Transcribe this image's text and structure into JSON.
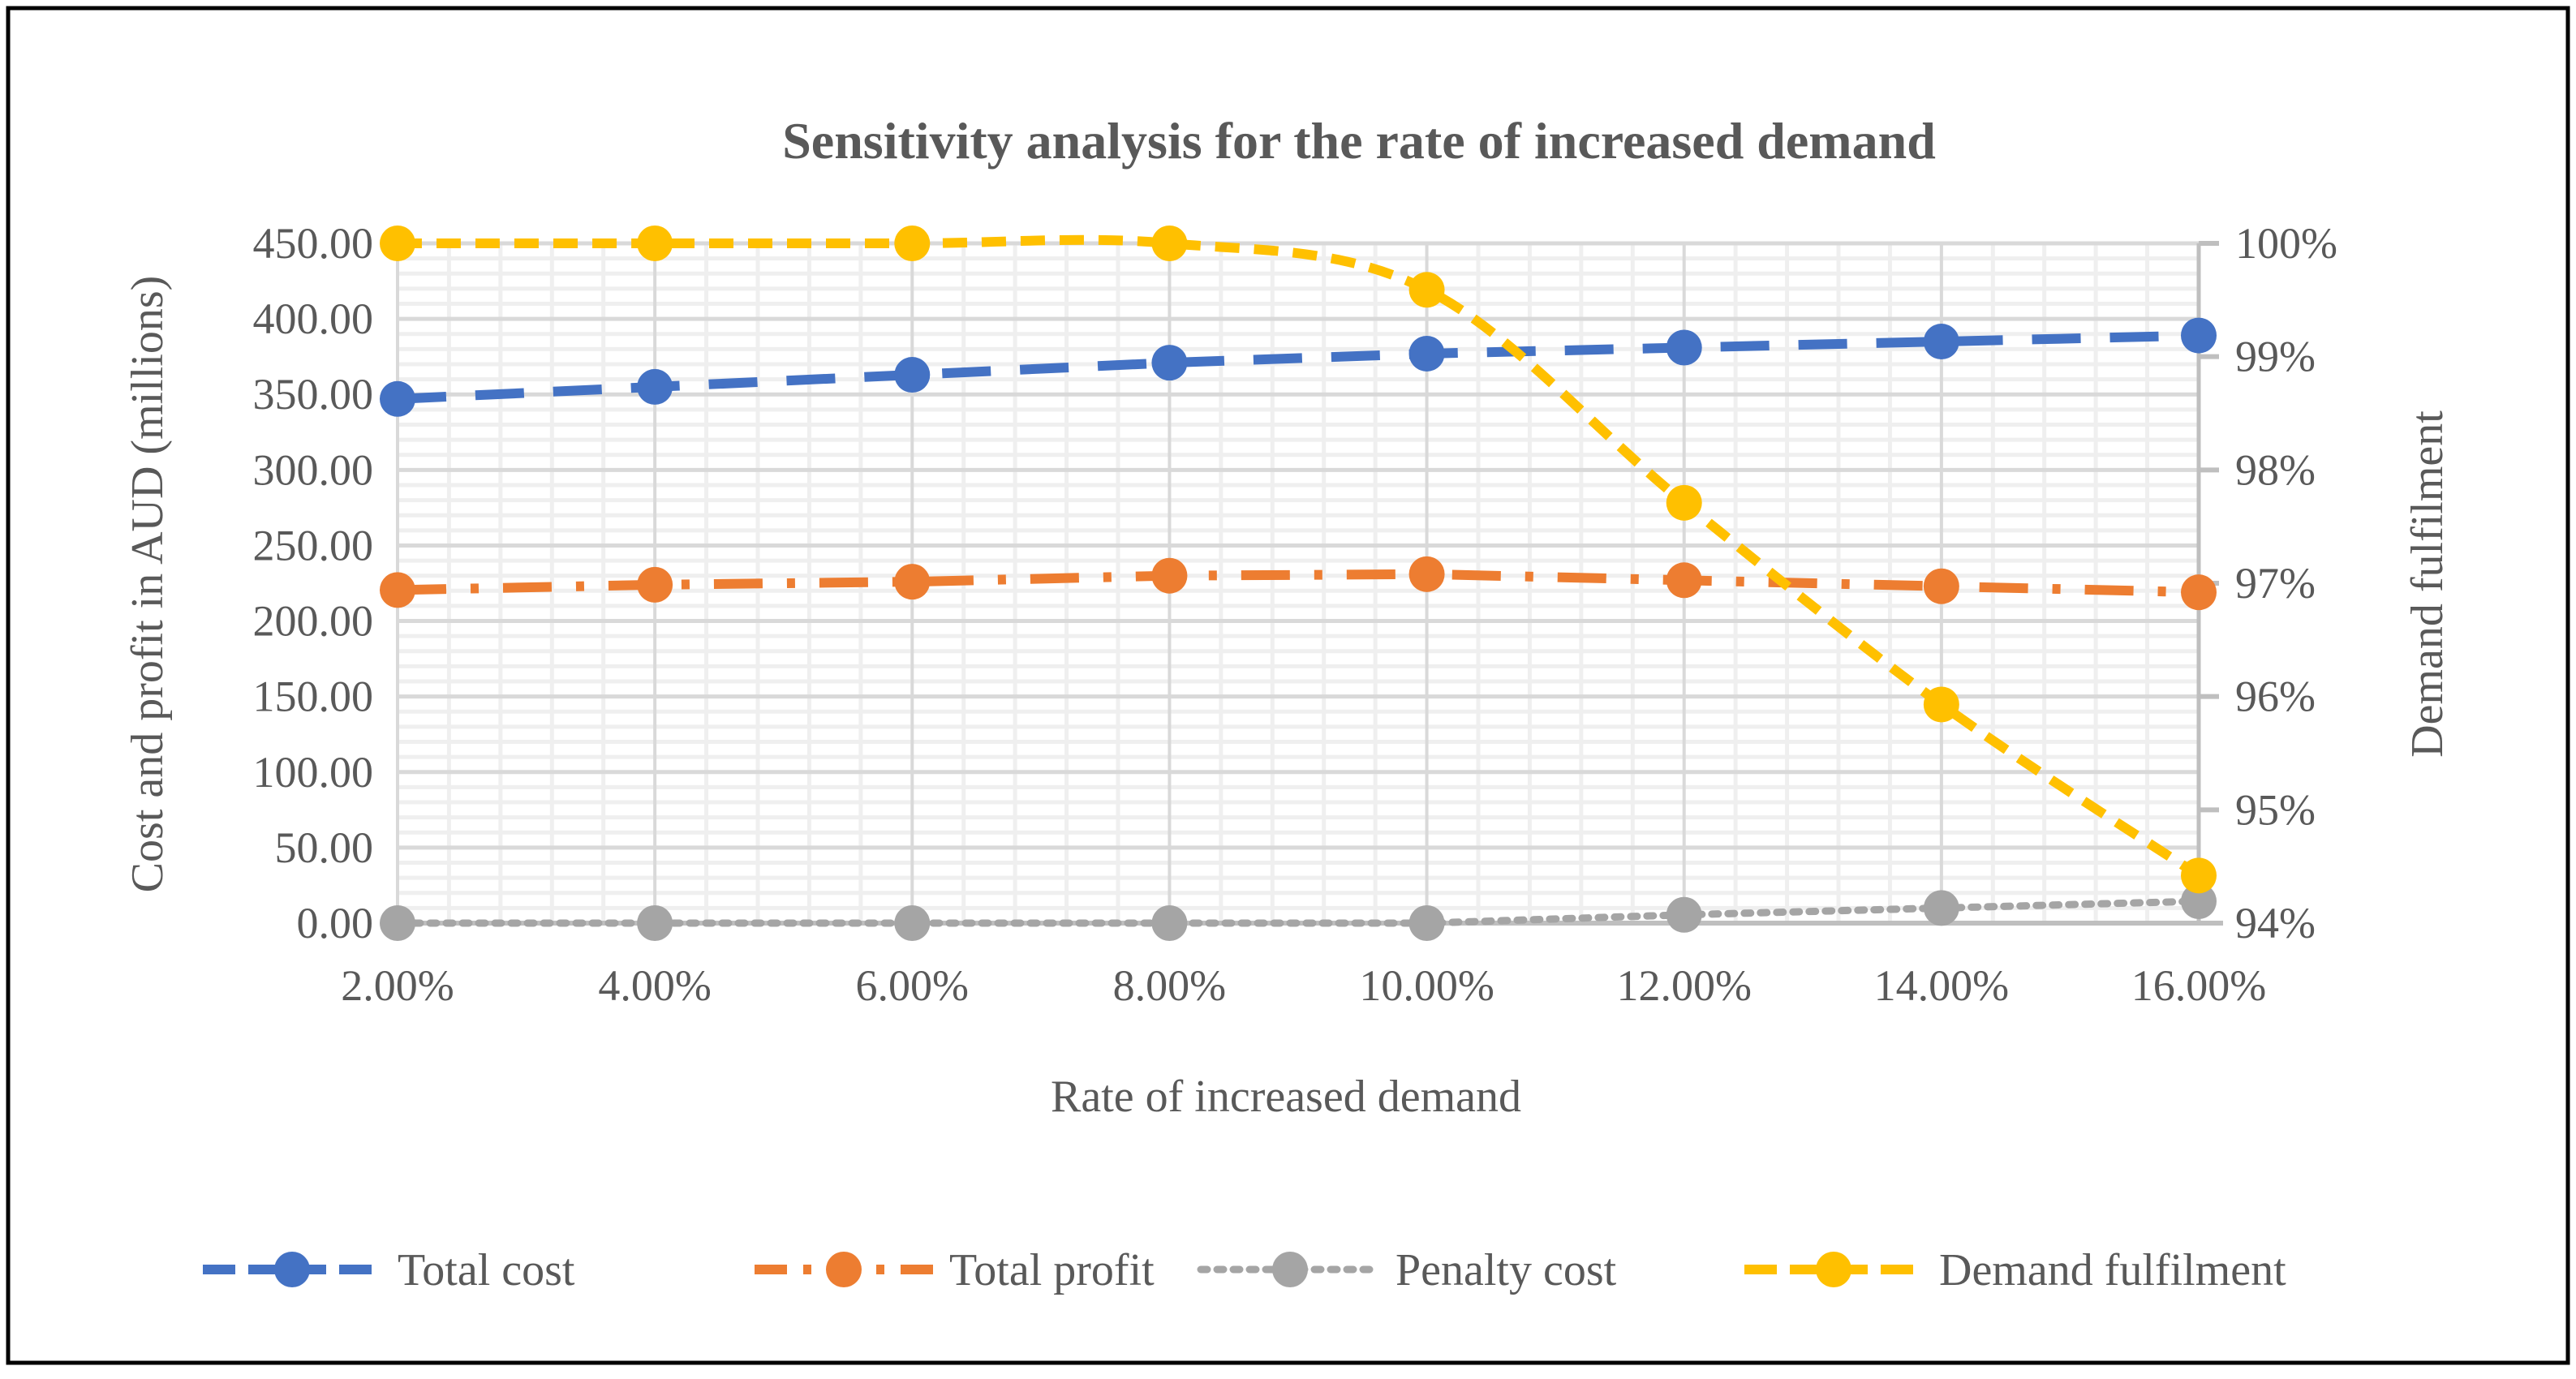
{
  "chart_data": {
    "type": "line",
    "title": "Sensitivity analysis for the rate of increased demand",
    "xlabel": "Rate of increased demand",
    "ylabel": "Cost and profit in AUD (millions)",
    "y2label": "Demand fulfilment",
    "categories": [
      "2.00%",
      "4.00%",
      "6.00%",
      "8.00%",
      "10.00%",
      "12.00%",
      "14.00%",
      "16.00%"
    ],
    "ylim": [
      0,
      450
    ],
    "yticks": [
      "0.00",
      "50.00",
      "100.00",
      "150.00",
      "200.00",
      "250.00",
      "300.00",
      "350.00",
      "400.00",
      "450.00"
    ],
    "y2lim": [
      94,
      100
    ],
    "y2ticks": [
      "94%",
      "95%",
      "96%",
      "97%",
      "98%",
      "99%",
      "100%"
    ],
    "grid": true,
    "legend_position": "bottom",
    "series": [
      {
        "name": "Total cost",
        "axis": "left",
        "color": "#4472C4",
        "dash": "long",
        "values": [
          347,
          355,
          363,
          371,
          377,
          381,
          385,
          389
        ]
      },
      {
        "name": "Total profit",
        "axis": "left",
        "color": "#ED7D31",
        "dash": "dashdot",
        "values": [
          220.5,
          224,
          226,
          230,
          231,
          227,
          223,
          219
        ]
      },
      {
        "name": "Penalty cost",
        "axis": "left",
        "color": "#A5A5A5",
        "dash": "dot",
        "values": [
          0,
          0,
          0,
          0,
          0,
          5.5,
          10,
          14.5
        ]
      },
      {
        "name": "Demand fulfilment",
        "axis": "right",
        "color": "#FFC000",
        "dash": "dash",
        "smooth": true,
        "values": [
          100,
          100,
          100,
          100,
          99.59,
          97.71,
          95.93,
          94.42
        ]
      }
    ]
  }
}
